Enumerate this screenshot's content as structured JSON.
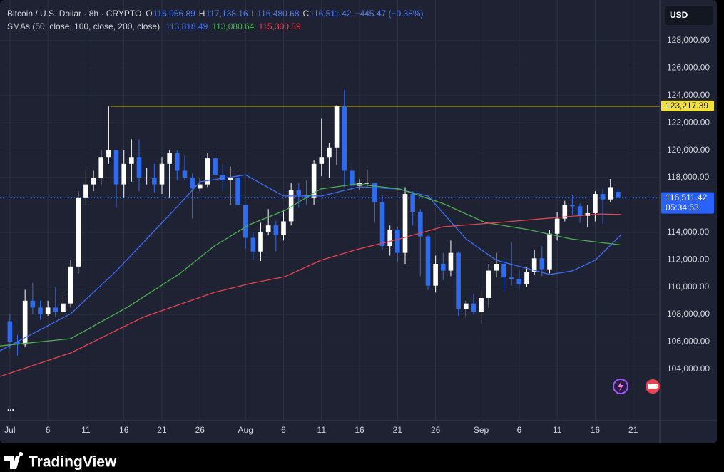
{
  "chart_data": {
    "type": "candlestick",
    "title": "Bitcoin / U.S. Dollar · 8h · CRYPTO",
    "ohlc": [
      {
        "key": "O",
        "value": "116,956.89"
      },
      {
        "key": "H",
        "value": "117,138.16"
      },
      {
        "key": "L",
        "value": "116,480.68"
      },
      {
        "key": "C",
        "value": "116,511.42"
      }
    ],
    "change": "−445.47 (−0.38%)",
    "indicator": "SMAs (50, close, 100, close, 200, close)",
    "currency": "USD",
    "more": "...",
    "brand": "TradingView",
    "up_color": "#ffffff",
    "down_color": "#2e6bf0",
    "grid": true,
    "xlim": [
      -1.3,
      85.5
    ],
    "xticks": [
      {
        "value": 0,
        "label": "Jul"
      },
      {
        "value": 5,
        "label": "6"
      },
      {
        "value": 10,
        "label": "11"
      },
      {
        "value": 15,
        "label": "16"
      },
      {
        "value": 20,
        "label": "21"
      },
      {
        "value": 25,
        "label": "26"
      },
      {
        "value": 31,
        "label": "Aug"
      },
      {
        "value": 36,
        "label": "6"
      },
      {
        "value": 41,
        "label": "11"
      },
      {
        "value": 46,
        "label": "16"
      },
      {
        "value": 51,
        "label": "21"
      },
      {
        "value": 56,
        "label": "26"
      },
      {
        "value": 62,
        "label": "Sep"
      },
      {
        "value": 67,
        "label": "6"
      },
      {
        "value": 72,
        "label": "11"
      },
      {
        "value": 77,
        "label": "16"
      },
      {
        "value": 82,
        "label": "21"
      }
    ],
    "ylim": [
      100240,
      130970
    ],
    "yticks": [
      {
        "value": 104000,
        "label": "104,000.00"
      },
      {
        "value": 106000,
        "label": "106,000.00"
      },
      {
        "value": 108000,
        "label": "108,000.00"
      },
      {
        "value": 110000,
        "label": "110,000.00"
      },
      {
        "value": 112000,
        "label": "112,000.00"
      },
      {
        "value": 114000,
        "label": "114,000.00"
      },
      {
        "value": 116000,
        "label": "116,000.00"
      },
      {
        "value": 118000,
        "label": "118,000.00"
      },
      {
        "value": 120000,
        "label": "120,000.00"
      },
      {
        "value": 122000,
        "label": "122,000.00"
      },
      {
        "value": 124000,
        "label": "124,000.00"
      },
      {
        "value": 126000,
        "label": "126,000.00"
      },
      {
        "value": 128000,
        "label": "128,000.00"
      }
    ],
    "candles": {
      "x": [
        0,
        1,
        2,
        3,
        4,
        5,
        6,
        7,
        8,
        9,
        10,
        11,
        12,
        13,
        14,
        15,
        16,
        17,
        18,
        19,
        20,
        21,
        22,
        23,
        24,
        25,
        26,
        27,
        28,
        29,
        30,
        31,
        32,
        33,
        34,
        35,
        36,
        37,
        38,
        39,
        40,
        41,
        42,
        43,
        44,
        45,
        46,
        47,
        48,
        49,
        50,
        51,
        52,
        53,
        54,
        55,
        56,
        57,
        58,
        59,
        60,
        61,
        62,
        63,
        64,
        65,
        66,
        67,
        68,
        69,
        70,
        71,
        72,
        73,
        74,
        75,
        76,
        77,
        78,
        79,
        80
      ],
      "open": [
        107500,
        106000,
        105800,
        109000,
        108500,
        108000,
        108500,
        108200,
        108800,
        111500,
        116500,
        117500,
        118000,
        119500,
        120000,
        117500,
        119000,
        119500,
        118000,
        118000,
        117500,
        119000,
        119800,
        118500,
        118000,
        117200,
        117500,
        119400,
        118200,
        117800,
        118000,
        116000,
        113600,
        112600,
        114000,
        114500,
        113800,
        114800,
        117100,
        116700,
        116500,
        119000,
        119500,
        120200,
        123200,
        118500,
        117400,
        117600,
        117600,
        116200,
        113000,
        114200,
        112500,
        116800,
        115500,
        113700,
        110100,
        111700,
        111200,
        112500,
        108400,
        108800,
        108200,
        109200,
        111200,
        111700,
        110700,
        110600,
        110200,
        111100,
        112100,
        111300,
        113900,
        115000,
        116000,
        115900,
        115200,
        115400,
        116800,
        116400,
        116956.89
      ],
      "high": [
        108000,
        106500,
        109800,
        110300,
        109000,
        109000,
        110000,
        109500,
        112000,
        117000,
        118500,
        118500,
        120000,
        123200,
        120000,
        120000,
        120800,
        120800,
        118700,
        119000,
        119500,
        120000,
        120000,
        119600,
        118300,
        118000,
        119800,
        119800,
        119000,
        118800,
        118800,
        116000,
        114000,
        114700,
        115700,
        114800,
        115600,
        117600,
        117600,
        117800,
        119300,
        122300,
        120500,
        123300,
        124400,
        119100,
        117900,
        118600,
        117600,
        116700,
        114500,
        114400,
        117300,
        117000,
        115700,
        113800,
        112300,
        112500,
        113400,
        112600,
        109000,
        109500,
        109900,
        111700,
        112500,
        112000,
        113300,
        111300,
        111500,
        112700,
        113000,
        114200,
        115500,
        116300,
        116700,
        116100,
        116000,
        117000,
        117200,
        117900,
        117138.16
      ],
      "low": [
        105500,
        105000,
        105600,
        108000,
        107600,
        107900,
        107800,
        108000,
        108500,
        111000,
        116000,
        117000,
        117500,
        119000,
        115800,
        116500,
        117700,
        117000,
        117500,
        116900,
        116800,
        116500,
        117800,
        117800,
        115000,
        117000,
        117300,
        117800,
        117000,
        116000,
        115600,
        112800,
        112000,
        111900,
        113800,
        112600,
        113400,
        114500,
        115800,
        116000,
        116000,
        118100,
        118000,
        118900,
        117300,
        116800,
        117100,
        117300,
        114700,
        112700,
        112300,
        111800,
        111700,
        114500,
        110800,
        109800,
        109600,
        110500,
        110800,
        107900,
        107800,
        108000,
        107300,
        108500,
        110700,
        109700,
        110100,
        109900,
        110000,
        110900,
        110800,
        111000,
        113400,
        114800,
        115300,
        114700,
        114400,
        114800,
        114600,
        116200,
        116480.68
      ],
      "close": [
        106000,
        105800,
        109000,
        108500,
        108000,
        108500,
        108200,
        108800,
        111500,
        116500,
        117500,
        118000,
        119500,
        120000,
        117500,
        119000,
        119500,
        118000,
        118000,
        117500,
        119000,
        119800,
        118500,
        118000,
        117200,
        117500,
        119400,
        118200,
        117800,
        118000,
        116000,
        113600,
        112600,
        114000,
        114500,
        113800,
        114800,
        117100,
        116700,
        116500,
        119000,
        119500,
        120200,
        123200,
        118500,
        117400,
        117600,
        117600,
        116200,
        113000,
        114200,
        112500,
        116800,
        115500,
        113700,
        110100,
        111700,
        111200,
        112500,
        108400,
        108800,
        108200,
        109200,
        111200,
        111700,
        110700,
        110600,
        110200,
        111100,
        112100,
        111300,
        113900,
        115000,
        116000,
        115900,
        115200,
        115400,
        116800,
        116400,
        117300,
        116511.42
      ]
    },
    "series": [
      {
        "color": "#3b6ff5",
        "value_label": "113,818.49",
        "x": [
          -1.3,
          8,
          14,
          22,
          25,
          31,
          36,
          41,
          46,
          51,
          55,
          60,
          64,
          71,
          74,
          77,
          80.4
        ],
        "values": [
          105344,
          108050,
          111180,
          115860,
          117690,
          118200,
          116650,
          116650,
          117330,
          117170,
          116650,
          113520,
          111960,
          110920,
          111180,
          111960,
          113818.49
        ]
      },
      {
        "color": "#4caf50",
        "value_label": "113,080.64",
        "x": [
          -1.3,
          8,
          15.6,
          22.2,
          26.9,
          31.5,
          36.2,
          40.9,
          45.6,
          51.3,
          56.9,
          62.5,
          68.2,
          73.8,
          80.4
        ],
        "values": [
          105700,
          106230,
          108570,
          110920,
          113000,
          114560,
          115600,
          117170,
          117530,
          117170,
          116120,
          114720,
          114200,
          113520,
          113080.64
        ]
      },
      {
        "color": "#e8434f",
        "value_label": "115,300.89",
        "x": [
          -1.3,
          8,
          17.5,
          26.9,
          31.5,
          36.2,
          40.9,
          45.6,
          51.3,
          56.9,
          64.4,
          71.9,
          77.6,
          80.4
        ],
        "values": [
          103470,
          105190,
          107790,
          109610,
          110240,
          110760,
          111960,
          112740,
          113520,
          114400,
          114720,
          115080,
          115340,
          115300.89
        ]
      }
    ],
    "price_lines": [
      {
        "value": 123217.39,
        "label": "123,217.39",
        "color": "#f0e040",
        "text_color": "#131722",
        "x0": 13.2
      },
      {
        "value": 116511.42,
        "label": "116,511.42",
        "sublabel": "05:34:53",
        "color": "#2962ff",
        "text_color": "#ffffff"
      }
    ]
  }
}
